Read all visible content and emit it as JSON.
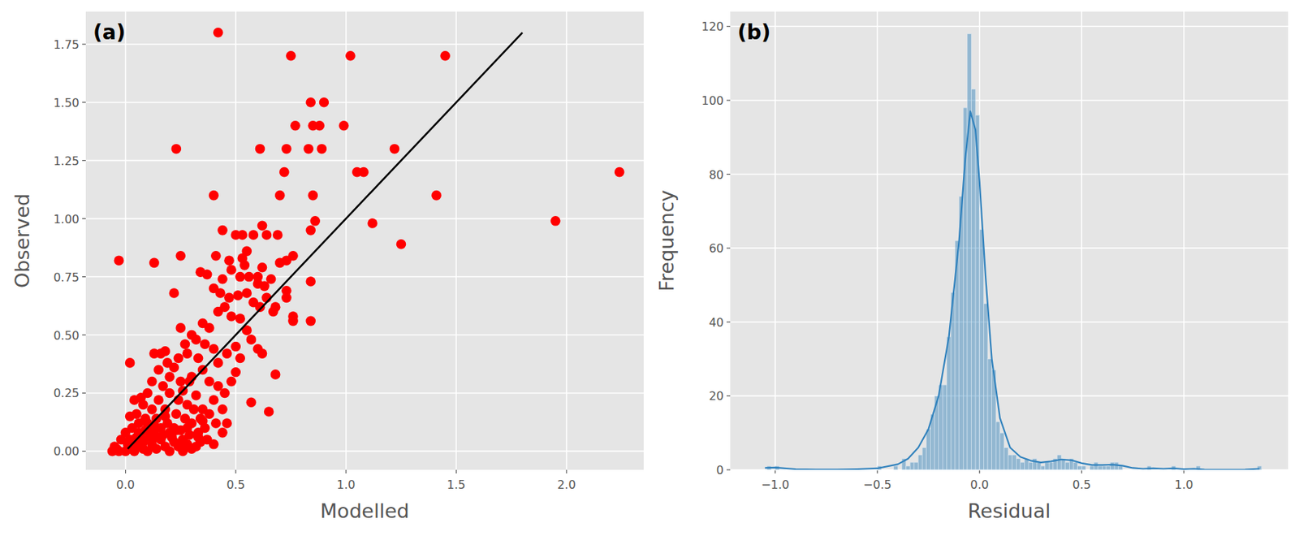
{
  "chart_data": [
    {
      "type": "scatter",
      "title": "(a)",
      "x_label": "Modelled",
      "y_label": "Observed",
      "grid": true,
      "xlim": [
        -0.18,
        2.35
      ],
      "ylim": [
        -0.08,
        1.89
      ],
      "xticks": [
        {
          "value": 0,
          "label": "0.0"
        },
        {
          "value": 0.5,
          "label": "0.5"
        },
        {
          "value": 1,
          "label": "1.0"
        },
        {
          "value": 1.5,
          "label": "1.5"
        },
        {
          "value": 2,
          "label": "2.0"
        }
      ],
      "yticks": [
        {
          "value": 0,
          "label": "0.00"
        },
        {
          "value": 0.25,
          "label": "0.25"
        },
        {
          "value": 0.5,
          "label": "0.50"
        },
        {
          "value": 0.75,
          "label": "0.75"
        },
        {
          "value": 1,
          "label": "1.00"
        },
        {
          "value": 1.25,
          "label": "1.25"
        },
        {
          "value": 1.5,
          "label": "1.50"
        },
        {
          "value": 1.75,
          "label": "1.75"
        }
      ],
      "series": [
        {
          "type": "scatter",
          "color": "#ff0000",
          "x": [
            0.42,
            0.75,
            1.02,
            1.45,
            0.84,
            0.9,
            0.77,
            0.85,
            0.88,
            0.99,
            0.23,
            0.61,
            0.73,
            0.83,
            0.89,
            1.22,
            0.72,
            1.05,
            1.08,
            2.24,
            0.4,
            0.7,
            0.85,
            1.41,
            0.86,
            1.95,
            1.12,
            0.84,
            0.44,
            -0.03,
            0.13,
            1.25,
            0.5,
            0.53,
            0.58,
            0.62,
            0.64,
            0.69,
            0.55,
            0.53,
            0.47,
            0.41,
            0.25,
            0.54,
            0.62,
            0.7,
            0.73,
            0.76,
            0.34,
            0.37,
            0.6,
            0.66,
            0.56,
            0.52,
            0.48,
            0.44,
            0.4,
            0.73,
            0.73,
            0.84,
            0.6,
            0.63,
            0.22,
            0.43,
            0.47,
            0.51,
            0.55,
            0.58,
            0.61,
            0.64,
            0.68,
            0.67,
            0.76,
            0.76,
            0.84,
            0.02,
            0.68,
            0.57,
            0.65,
            0.44,
            0.25,
            0.18,
            0.13,
            0.3,
            0.32,
            0.35,
            0.38,
            0.42,
            0.45,
            0.48,
            0.52,
            0.55,
            0.57,
            0.6,
            0.62,
            0.5,
            0.46,
            0.42,
            0.52,
            0.4,
            0.36,
            0.33,
            0.28,
            0.22,
            0.2,
            0.25,
            0.3,
            0.35,
            0.38,
            0.42,
            0.45,
            0.48,
            0.5,
            0.4,
            0.35,
            0.32,
            0.28,
            0.3,
            0.33,
            0.36,
            0.26,
            0.22,
            0.18,
            0.15,
            0.12,
            0.1,
            0.08,
            0.05,
            0.03,
            0,
            -0.02,
            -0.05,
            -0.06,
            -0.03,
            0,
            0.02,
            0.04,
            0.06,
            0.08,
            0.1,
            0.12,
            0.14,
            0.16,
            0.18,
            0.2,
            0.22,
            0.24,
            0.26,
            0.28,
            0.3,
            0.32,
            0.34,
            0.2,
            0.16,
            0.13,
            0.11,
            0.07,
            0.05,
            0.01,
            -0.04,
            0.02,
            0.06,
            0.09,
            0.14,
            0.19,
            0.23,
            0.27,
            0.24,
            0.2,
            0.17,
            0.26,
            0.29,
            0.31,
            0.34,
            0.38,
            0.41,
            0.44,
            0.46,
            0.1,
            0.12,
            0.07,
            0.04,
            0.15,
            0.19,
            0.16,
            0.24,
            0.27,
            0.03,
            0.05,
            0.08,
            0.11,
            0.14,
            0.17,
            0.21,
            0.25,
            0.29,
            0.33,
            0.37,
            0.4,
            0.02,
            0.06,
            0.09,
            0.13,
            0.18,
            0.23,
            0.28,
            0.35
          ],
          "values": [
            1.8,
            1.7,
            1.7,
            1.7,
            1.5,
            1.5,
            1.4,
            1.4,
            1.4,
            1.4,
            1.3,
            1.3,
            1.3,
            1.3,
            1.3,
            1.3,
            1.2,
            1.2,
            1.2,
            1.2,
            1.1,
            1.1,
            1.1,
            1.1,
            0.99,
            0.99,
            0.98,
            0.95,
            0.95,
            0.82,
            0.81,
            0.89,
            0.93,
            0.93,
            0.93,
            0.97,
            0.93,
            0.93,
            0.86,
            0.83,
            0.82,
            0.84,
            0.84,
            0.8,
            0.79,
            0.81,
            0.82,
            0.84,
            0.77,
            0.76,
            0.75,
            0.74,
            0.75,
            0.75,
            0.78,
            0.74,
            0.7,
            0.69,
            0.66,
            0.73,
            0.72,
            0.71,
            0.68,
            0.68,
            0.66,
            0.67,
            0.68,
            0.64,
            0.62,
            0.66,
            0.62,
            0.6,
            0.58,
            0.56,
            0.56,
            0.38,
            0.33,
            0.21,
            0.17,
            0.08,
            0.53,
            0.43,
            0.42,
            0.5,
            0.48,
            0.55,
            0.53,
            0.6,
            0.62,
            0.58,
            0.57,
            0.52,
            0.48,
            0.44,
            0.42,
            0.45,
            0.42,
            0.38,
            0.4,
            0.44,
            0.46,
            0.4,
            0.42,
            0.36,
            0.32,
            0.3,
            0.32,
            0.35,
            0.3,
            0.28,
            0.25,
            0.3,
            0.34,
            0.22,
            0.18,
            0.24,
            0.2,
            0.12,
            0.08,
            0.1,
            0.05,
            0.1,
            0.15,
            0.22,
            0.18,
            0.12,
            0.2,
            0.16,
            0.1,
            0.08,
            0.05,
            0.02,
            0,
            0,
            0,
            0.01,
            0,
            0.02,
            0.01,
            0,
            0.03,
            0.01,
            0.05,
            0.02,
            0,
            0.04,
            0.02,
            0,
            0.03,
            0.01,
            0.02,
            0.04,
            0.08,
            0.1,
            0.08,
            0.06,
            0.06,
            0.04,
            0.03,
            0.01,
            0.15,
            0.12,
            0.09,
            0.14,
            0.12,
            0.16,
            0.14,
            0.22,
            0.25,
            0.28,
            0.26,
            0.3,
            0.18,
            0.14,
            0.16,
            0.12,
            0.18,
            0.12,
            0.25,
            0.3,
            0.23,
            0.22,
            0.35,
            0.38,
            0.42,
            0.4,
            0.46,
            0.02,
            0.06,
            0.04,
            0.09,
            0.06,
            0.07,
            0.06,
            0.09,
            0.07,
            0.06,
            0.05,
            0.03,
            0.05,
            0.08,
            0.14,
            0.11,
            0.18,
            0.09,
            0.1,
            0.13
          ]
        },
        {
          "type": "line",
          "color": "#000000",
          "x": [
            0.01,
            1.8
          ],
          "values": [
            0.01,
            1.8
          ]
        }
      ]
    },
    {
      "type": "histogram",
      "title": "(b)",
      "x_label": "Residual",
      "y_label": "Frequency",
      "grid": true,
      "xlim": [
        -1.22,
        1.51
      ],
      "ylim": [
        0,
        124
      ],
      "xticks": [
        {
          "value": -1,
          "label": "−1.0"
        },
        {
          "value": -0.5,
          "label": "−0.5"
        },
        {
          "value": 0,
          "label": "0.0"
        },
        {
          "value": 0.5,
          "label": "0.5"
        },
        {
          "value": 1,
          "label": "1.0"
        }
      ],
      "yticks": [
        0,
        20,
        40,
        60,
        80,
        100,
        120
      ],
      "color": "#1f77b4",
      "bins": [
        -1.06,
        -1.04,
        -1.02,
        -1.0,
        -0.98,
        -0.96,
        -0.94,
        -0.92,
        -0.9,
        -0.88,
        -0.86,
        -0.84,
        -0.82,
        -0.8,
        -0.78,
        -0.76,
        -0.74,
        -0.72,
        -0.7,
        -0.68,
        -0.66,
        -0.64,
        -0.62,
        -0.6,
        -0.58,
        -0.56,
        -0.54,
        -0.52,
        -0.5,
        -0.48,
        -0.46,
        -0.44,
        -0.42,
        -0.4,
        -0.38,
        -0.36,
        -0.34,
        -0.32,
        -0.3,
        -0.28,
        -0.26,
        -0.24,
        -0.22,
        -0.2,
        -0.18,
        -0.16,
        -0.14,
        -0.12,
        -0.1,
        -0.08,
        -0.06,
        -0.04,
        -0.02,
        0,
        0.02,
        0.04,
        0.06,
        0.08,
        0.1,
        0.12,
        0.14,
        0.16,
        0.18,
        0.2,
        0.22,
        0.24,
        0.26,
        0.28,
        0.3,
        0.32,
        0.34,
        0.36,
        0.38,
        0.4,
        0.42,
        0.44,
        0.46,
        0.48,
        0.5,
        0.52,
        0.54,
        0.56,
        0.58,
        0.6,
        0.62,
        0.64,
        0.66,
        0.68,
        0.7,
        0.72,
        0.74,
        0.76,
        0.78,
        0.8,
        0.82,
        0.84,
        0.86,
        0.88,
        0.9,
        0.92,
        0.94,
        0.96,
        0.98,
        1.0,
        1.02,
        1.04,
        1.06,
        1.08,
        1.1,
        1.12,
        1.14,
        1.16,
        1.18,
        1.2,
        1.22,
        1.24,
        1.26,
        1.28,
        1.3,
        1.32,
        1.34,
        1.36,
        1.38
      ],
      "counts": [
        0,
        1,
        0,
        1,
        0,
        0,
        0,
        0,
        0,
        0,
        0,
        0,
        0,
        0,
        0,
        0,
        0,
        0,
        0,
        0,
        0,
        0,
        0,
        0,
        0,
        0,
        0,
        0,
        1,
        0,
        0,
        0,
        1,
        0,
        3,
        1,
        2,
        2,
        4,
        6,
        11,
        15,
        20,
        23,
        23,
        36,
        48,
        62,
        74,
        98,
        118,
        103,
        96,
        65,
        45,
        30,
        27,
        13,
        10,
        6,
        4,
        4,
        3,
        2,
        3,
        2,
        3,
        2,
        1,
        2,
        2,
        3,
        4,
        3,
        2,
        3,
        2,
        1,
        1,
        0,
        1,
        2,
        1,
        1,
        1,
        2,
        2,
        1,
        0,
        0,
        0,
        0,
        0,
        0,
        1,
        0,
        0,
        0,
        0,
        0,
        1,
        0,
        0,
        0,
        0,
        0,
        1,
        0,
        0,
        0,
        0,
        0,
        0,
        0,
        0,
        0,
        0,
        0,
        0,
        0,
        0,
        1
      ],
      "series": [
        {
          "type": "line",
          "color": "#3182bd",
          "x": [
            -1.05,
            -1.0,
            -0.9,
            -0.8,
            -0.7,
            -0.6,
            -0.5,
            -0.4,
            -0.35,
            -0.3,
            -0.25,
            -0.2,
            -0.15,
            -0.1,
            -0.07,
            -0.045,
            -0.02,
            0.0,
            0.03,
            0.06,
            0.1,
            0.15,
            0.2,
            0.25,
            0.3,
            0.35,
            0.4,
            0.45,
            0.5,
            0.55,
            0.6,
            0.65,
            0.7,
            0.75,
            0.8,
            0.85,
            0.9,
            0.95,
            1.0,
            1.05,
            1.1,
            1.2,
            1.3,
            1.37
          ],
          "values": [
            0.5,
            0.6,
            0.2,
            0.1,
            0.1,
            0.2,
            0.4,
            1.5,
            3,
            6,
            11,
            20,
            36,
            62,
            84,
            97,
            92,
            78,
            52,
            30,
            14,
            6,
            3.5,
            2.5,
            2,
            2.3,
            2.8,
            2.6,
            1.8,
            1.3,
            1.3,
            1.4,
            1.1,
            0.5,
            0.3,
            0.4,
            0.3,
            0.4,
            0.2,
            0.3,
            0.1,
            0.05,
            0.1,
            0.3
          ]
        }
      ]
    }
  ]
}
